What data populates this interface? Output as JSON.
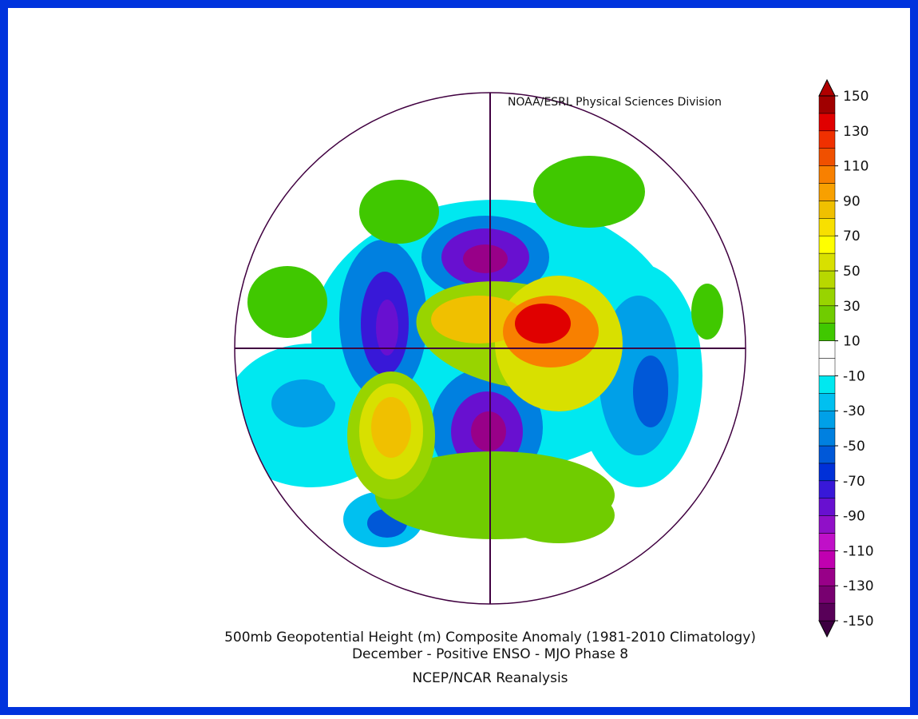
{
  "credit": "NOAA/ESRL Physical Sciences Division",
  "title_lines": [
    "500mb Geopotential Height (m) Composite Anomaly (1981-2010 Climatology)",
    "December - Positive ENSO - MJO Phase 8"
  ],
  "source": "NCEP/NCAR Reanalysis",
  "colorbar": {
    "range": [
      -150,
      150
    ],
    "levels": [
      -150,
      -140,
      -130,
      -120,
      -110,
      -100,
      -90,
      -80,
      -70,
      -60,
      -50,
      -40,
      -30,
      -20,
      -10,
      0,
      10,
      20,
      30,
      40,
      50,
      60,
      70,
      80,
      90,
      100,
      110,
      120,
      130,
      140,
      150
    ],
    "colors": [
      "#3c0040",
      "#580058",
      "#780070",
      "#980088",
      "#c000b0",
      "#c010c8",
      "#9010c8",
      "#6810d0",
      "#3818d8",
      "#0030d8",
      "#0058d8",
      "#0080e0",
      "#00a0e8",
      "#00c0f0",
      "#00e8f0",
      "#ffffff",
      "#ffffff",
      "#40c800",
      "#70cc00",
      "#98d400",
      "#b8d800",
      "#d8e000",
      "#ffff00",
      "#f8e000",
      "#f0c000",
      "#f8a000",
      "#f88000",
      "#f05000",
      "#f03000",
      "#e00000",
      "#a00000",
      "#b00000"
    ],
    "ticks": [
      150,
      130,
      110,
      90,
      70,
      50,
      30,
      10,
      -10,
      -30,
      -50,
      -70,
      -90,
      -110,
      -130,
      -150
    ]
  }
}
